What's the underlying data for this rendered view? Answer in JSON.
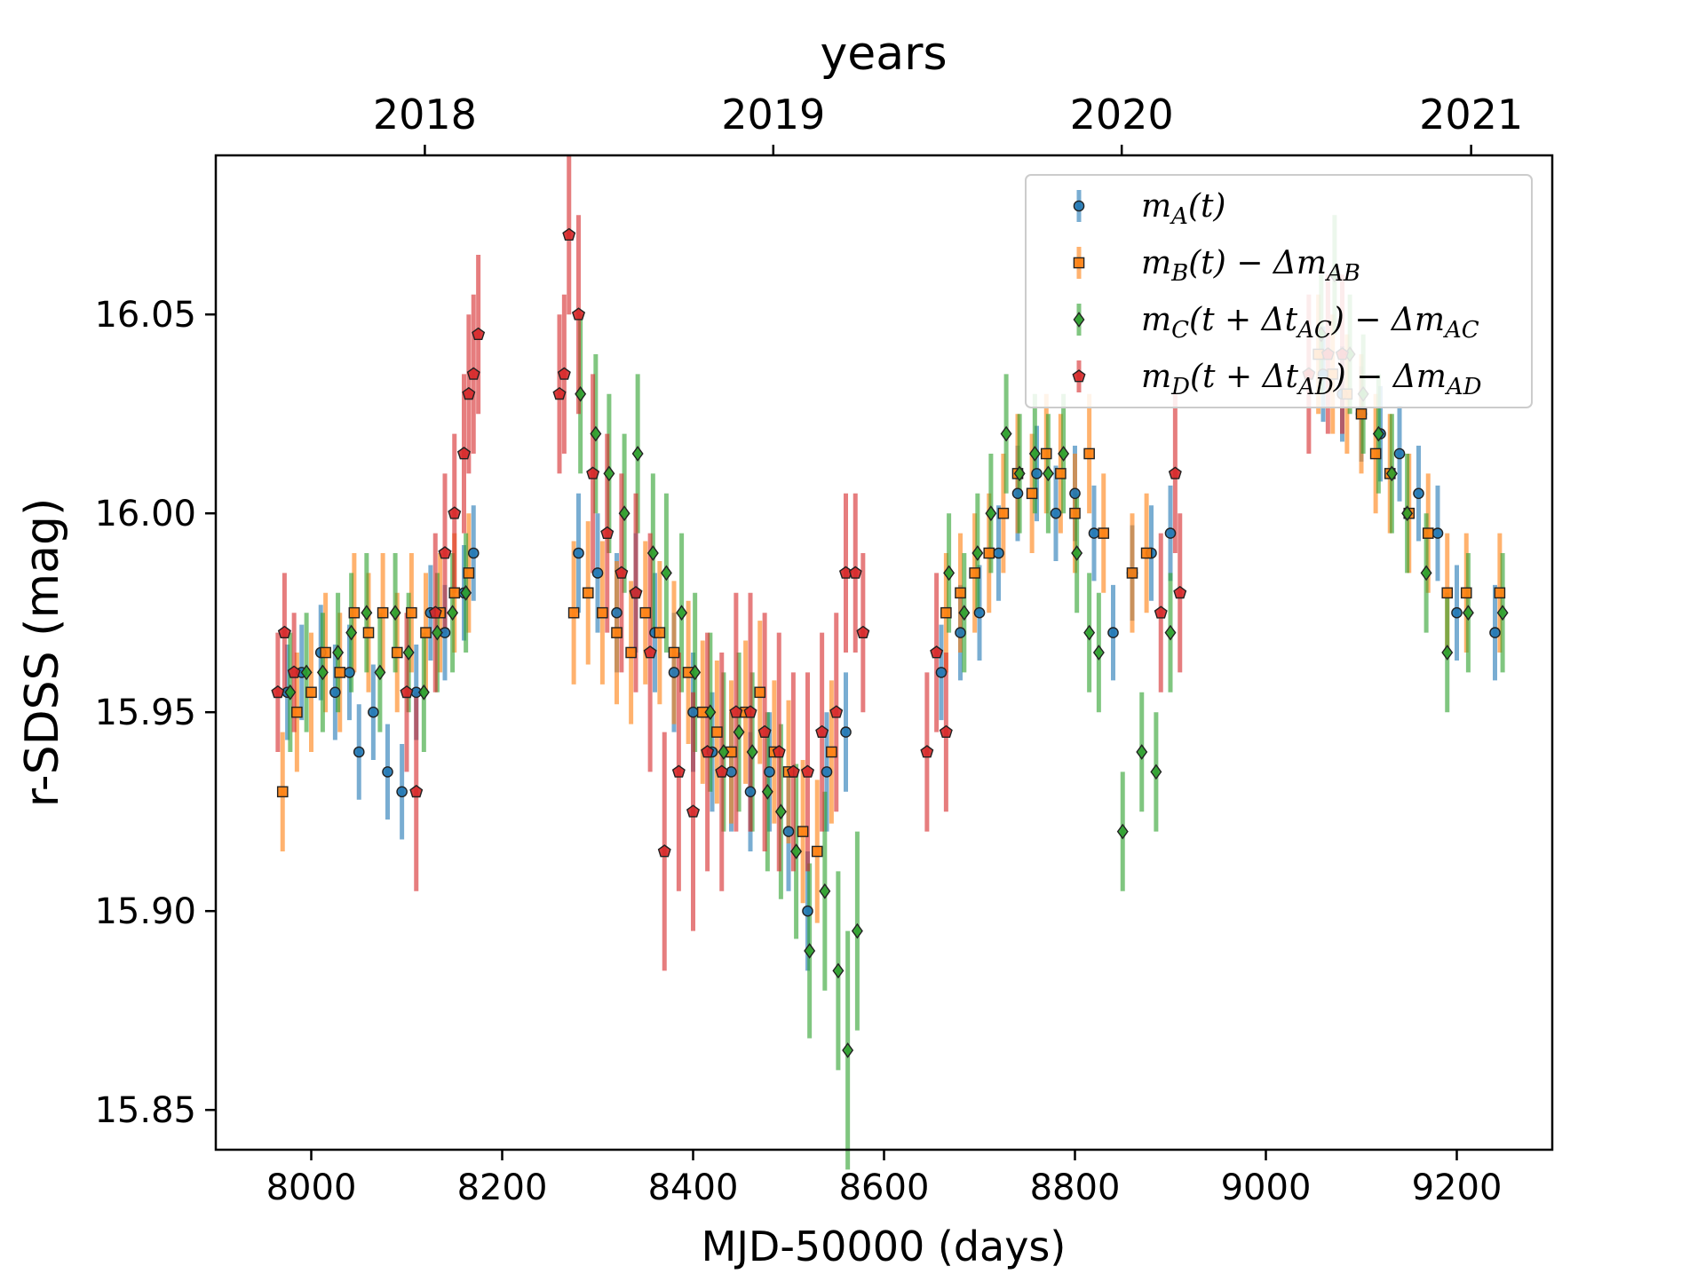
{
  "chart_data": {
    "type": "scatter",
    "title": "",
    "xlabel": "MJD-50000 (days)",
    "ylabel": "r-SDSS (mag)",
    "top_axis_label": "years",
    "xlim": [
      7900,
      9300
    ],
    "ylim": [
      16.09,
      15.84
    ],
    "y_inverted": true,
    "x_ticks": [
      8000,
      8200,
      8400,
      8600,
      8800,
      9000,
      9200
    ],
    "x_tick_labels": [
      "8000",
      "8200",
      "8400",
      "8600",
      "8800",
      "9000",
      "9200"
    ],
    "y_ticks": [
      15.85,
      15.9,
      15.95,
      16.0,
      16.05
    ],
    "y_tick_labels": [
      "15.85",
      "15.90",
      "15.95",
      "16.00",
      "16.05"
    ],
    "top_ticks": [
      8119,
      8484,
      8849,
      9215
    ],
    "top_tick_labels": [
      "2018",
      "2019",
      "2020",
      "2021"
    ],
    "legend_position": "top-right",
    "series": [
      {
        "name": "m_A(t)",
        "legend_label": [
          "m",
          "A",
          "(t)"
        ],
        "color": "#1f77b4",
        "marker": "circle",
        "x": [
          7975,
          7990,
          8010,
          8025,
          8040,
          8050,
          8065,
          8080,
          8095,
          8110,
          8125,
          8140,
          8160,
          8170,
          8280,
          8300,
          8320,
          8340,
          8360,
          8380,
          8400,
          8420,
          8440,
          8460,
          8480,
          8500,
          8520,
          8540,
          8560,
          8660,
          8680,
          8700,
          8720,
          8740,
          8760,
          8780,
          8800,
          8820,
          8840,
          8860,
          8880,
          8900,
          9060,
          9080,
          9100,
          9120,
          9140,
          9160,
          9180,
          9200,
          9240
        ],
        "y": [
          15.955,
          15.96,
          15.965,
          15.955,
          15.96,
          15.94,
          15.95,
          15.935,
          15.93,
          15.955,
          15.975,
          15.97,
          15.98,
          15.99,
          15.99,
          15.985,
          15.975,
          15.98,
          15.97,
          15.96,
          15.95,
          15.94,
          15.935,
          15.93,
          15.935,
          15.92,
          15.9,
          15.935,
          15.945,
          15.96,
          15.97,
          15.975,
          15.99,
          16.005,
          16.01,
          16.0,
          16.005,
          15.995,
          15.97,
          15.985,
          15.99,
          15.995,
          16.035,
          16.03,
          16.025,
          16.02,
          16.015,
          16.005,
          15.995,
          15.975,
          15.97
        ],
        "err": [
          0.012,
          0.012,
          0.012,
          0.012,
          0.012,
          0.012,
          0.012,
          0.012,
          0.012,
          0.012,
          0.012,
          0.012,
          0.012,
          0.012,
          0.015,
          0.015,
          0.015,
          0.015,
          0.015,
          0.015,
          0.015,
          0.015,
          0.015,
          0.015,
          0.015,
          0.015,
          0.015,
          0.015,
          0.015,
          0.012,
          0.012,
          0.012,
          0.012,
          0.012,
          0.012,
          0.012,
          0.012,
          0.012,
          0.012,
          0.012,
          0.012,
          0.012,
          0.012,
          0.012,
          0.012,
          0.012,
          0.012,
          0.012,
          0.012,
          0.012,
          0.012
        ]
      },
      {
        "name": "m_B(t) − Δm_AB",
        "legend_label": [
          "m",
          "B",
          "(t) − Δm",
          "AB"
        ],
        "color": "#ff7f0e",
        "marker": "square",
        "x": [
          7970,
          7985,
          8000,
          8015,
          8030,
          8045,
          8060,
          8075,
          8090,
          8105,
          8120,
          8135,
          8150,
          8165,
          8275,
          8290,
          8305,
          8320,
          8335,
          8350,
          8365,
          8380,
          8395,
          8410,
          8425,
          8440,
          8455,
          8470,
          8485,
          8500,
          8515,
          8530,
          8545,
          8665,
          8680,
          8695,
          8710,
          8725,
          8740,
          8755,
          8770,
          8785,
          8800,
          8815,
          8830,
          8860,
          8875,
          9055,
          9070,
          9085,
          9100,
          9115,
          9130,
          9150,
          9170,
          9190,
          9210,
          9245
        ],
        "y": [
          15.93,
          15.95,
          15.955,
          15.965,
          15.96,
          15.975,
          15.97,
          15.975,
          15.965,
          15.975,
          15.97,
          15.975,
          15.98,
          15.985,
          15.975,
          15.98,
          15.975,
          15.97,
          15.965,
          15.975,
          15.97,
          15.965,
          15.96,
          15.95,
          15.945,
          15.94,
          15.95,
          15.955,
          15.94,
          15.935,
          15.92,
          15.915,
          15.94,
          15.975,
          15.98,
          15.985,
          15.99,
          16.0,
          16.01,
          16.005,
          16.015,
          16.01,
          16.0,
          16.015,
          15.995,
          15.985,
          15.99,
          16.04,
          16.035,
          16.03,
          16.025,
          16.015,
          16.01,
          16.0,
          15.995,
          15.98,
          15.98,
          15.98
        ],
        "err": [
          0.015,
          0.015,
          0.015,
          0.015,
          0.015,
          0.015,
          0.015,
          0.015,
          0.015,
          0.015,
          0.015,
          0.015,
          0.015,
          0.015,
          0.018,
          0.018,
          0.018,
          0.018,
          0.018,
          0.018,
          0.018,
          0.018,
          0.018,
          0.018,
          0.018,
          0.018,
          0.018,
          0.018,
          0.018,
          0.018,
          0.018,
          0.018,
          0.018,
          0.015,
          0.015,
          0.015,
          0.015,
          0.015,
          0.015,
          0.015,
          0.015,
          0.015,
          0.015,
          0.015,
          0.015,
          0.015,
          0.015,
          0.015,
          0.015,
          0.015,
          0.015,
          0.015,
          0.015,
          0.015,
          0.015,
          0.015,
          0.015,
          0.015
        ]
      },
      {
        "name": "m_C(t + Δt_AC) − Δm_AC",
        "legend_label": [
          "m",
          "C",
          "(t + Δt",
          "AC",
          ") − Δm",
          "AC"
        ],
        "color": "#2ca02c",
        "marker": "diamond",
        "x": [
          7978,
          7995,
          8012,
          8028,
          8042,
          8058,
          8072,
          8088,
          8102,
          8118,
          8132,
          8148,
          8162,
          8282,
          8298,
          8312,
          8328,
          8342,
          8358,
          8372,
          8388,
          8402,
          8418,
          8432,
          8448,
          8462,
          8478,
          8492,
          8508,
          8522,
          8538,
          8552,
          8562,
          8572,
          8668,
          8684,
          8698,
          8712,
          8728,
          8742,
          8758,
          8772,
          8788,
          8802,
          8815,
          8825,
          8850,
          8870,
          8885,
          8900,
          9058,
          9072,
          9088,
          9102,
          9118,
          9132,
          9148,
          9168,
          9190,
          9212,
          9248
        ],
        "y": [
          15.955,
          15.96,
          15.96,
          15.965,
          15.97,
          15.975,
          15.96,
          15.975,
          15.965,
          15.955,
          15.97,
          15.975,
          15.98,
          16.03,
          16.02,
          16.01,
          16.0,
          16.015,
          15.99,
          15.985,
          15.975,
          15.96,
          15.95,
          15.94,
          15.945,
          15.94,
          15.93,
          15.925,
          15.915,
          15.89,
          15.905,
          15.885,
          15.865,
          15.895,
          15.985,
          15.975,
          15.99,
          16.0,
          16.02,
          16.01,
          16.015,
          16.01,
          16.015,
          15.99,
          15.97,
          15.965,
          15.92,
          15.94,
          15.935,
          15.97,
          16.045,
          16.06,
          16.04,
          16.03,
          16.02,
          16.01,
          16.0,
          15.985,
          15.965,
          15.975,
          15.975
        ],
        "err": [
          0.015,
          0.015,
          0.015,
          0.015,
          0.015,
          0.015,
          0.015,
          0.015,
          0.015,
          0.015,
          0.015,
          0.015,
          0.015,
          0.02,
          0.02,
          0.02,
          0.02,
          0.02,
          0.02,
          0.02,
          0.02,
          0.02,
          0.02,
          0.02,
          0.02,
          0.02,
          0.02,
          0.022,
          0.022,
          0.022,
          0.025,
          0.025,
          0.03,
          0.025,
          0.015,
          0.015,
          0.015,
          0.015,
          0.015,
          0.015,
          0.015,
          0.015,
          0.015,
          0.015,
          0.015,
          0.015,
          0.015,
          0.015,
          0.015,
          0.015,
          0.015,
          0.015,
          0.015,
          0.015,
          0.015,
          0.015,
          0.015,
          0.015,
          0.015,
          0.015,
          0.015
        ]
      },
      {
        "name": "m_D(t + Δt_AD) − Δm_AD",
        "legend_label": [
          "m",
          "D",
          "(t + Δt",
          "AD",
          ") − Δm",
          "AD"
        ],
        "color": "#d62728",
        "marker": "pentagon",
        "x": [
          7965,
          7972,
          7982,
          8100,
          8110,
          8130,
          8140,
          8150,
          8160,
          8165,
          8170,
          8175,
          8260,
          8265,
          8270,
          8280,
          8295,
          8310,
          8325,
          8340,
          8355,
          8370,
          8385,
          8400,
          8415,
          8430,
          8445,
          8460,
          8475,
          8490,
          8505,
          8520,
          8535,
          8550,
          8560,
          8570,
          8578,
          8645,
          8655,
          8665,
          8890,
          8905,
          8910,
          9045,
          9065,
          9080
        ],
        "y": [
          15.955,
          15.97,
          15.96,
          15.955,
          15.93,
          15.975,
          15.99,
          16.0,
          16.015,
          16.03,
          16.035,
          16.045,
          16.03,
          16.035,
          16.07,
          16.05,
          16.01,
          15.995,
          15.985,
          15.98,
          15.965,
          15.915,
          15.935,
          15.925,
          15.94,
          15.935,
          15.95,
          15.95,
          15.945,
          15.94,
          15.935,
          15.935,
          15.945,
          15.95,
          15.985,
          15.985,
          15.97,
          15.94,
          15.965,
          15.945,
          15.975,
          16.01,
          15.98,
          16.035,
          16.04,
          16.04
        ],
        "err": [
          0.015,
          0.015,
          0.015,
          0.02,
          0.025,
          0.02,
          0.02,
          0.02,
          0.02,
          0.02,
          0.02,
          0.02,
          0.02,
          0.02,
          0.02,
          0.025,
          0.025,
          0.025,
          0.025,
          0.025,
          0.03,
          0.03,
          0.03,
          0.03,
          0.03,
          0.03,
          0.03,
          0.03,
          0.03,
          0.03,
          0.025,
          0.025,
          0.025,
          0.025,
          0.02,
          0.02,
          0.02,
          0.02,
          0.02,
          0.02,
          0.02,
          0.02,
          0.02,
          0.02,
          0.02,
          0.02
        ]
      }
    ]
  }
}
